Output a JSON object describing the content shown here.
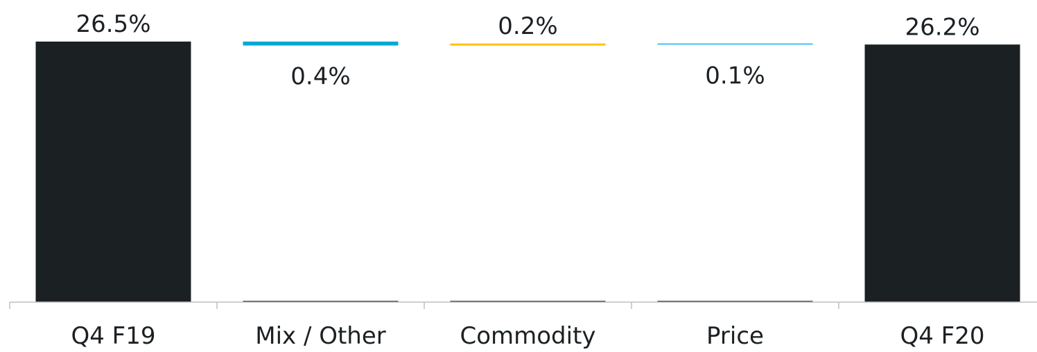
{
  "chart_data": {
    "type": "bar",
    "subtype": "waterfall",
    "categories": [
      "Q4 F19",
      "Mix / Other",
      "Commodity",
      "Price",
      "Q4 F20"
    ],
    "steps": [
      {
        "category": "Q4 F19",
        "kind": "total",
        "value": 26.5,
        "label": "26.5%",
        "color": "#1b2023",
        "label_position": "above"
      },
      {
        "category": "Mix / Other",
        "kind": "decrease",
        "value": -0.4,
        "label": "0.4%",
        "color": "#00aad5",
        "label_position": "below"
      },
      {
        "category": "Commodity",
        "kind": "increase",
        "value": 0.2,
        "label": "0.2%",
        "color": "#ffbf00",
        "label_position": "above"
      },
      {
        "category": "Price",
        "kind": "decrease",
        "value": -0.1,
        "label": "0.1%",
        "color": "#00b0ef",
        "label_position": "below"
      },
      {
        "category": "Q4 F20",
        "kind": "total",
        "value": 26.2,
        "label": "26.2%",
        "color": "#1b2023",
        "label_position": "above"
      }
    ],
    "title": "",
    "xlabel": "",
    "ylabel": "",
    "y_axis_visible": false,
    "grid": false,
    "legend": "none",
    "colors": {
      "total": "#1b2023",
      "axis": "#bfbfbf",
      "text": "#1b2023"
    }
  }
}
